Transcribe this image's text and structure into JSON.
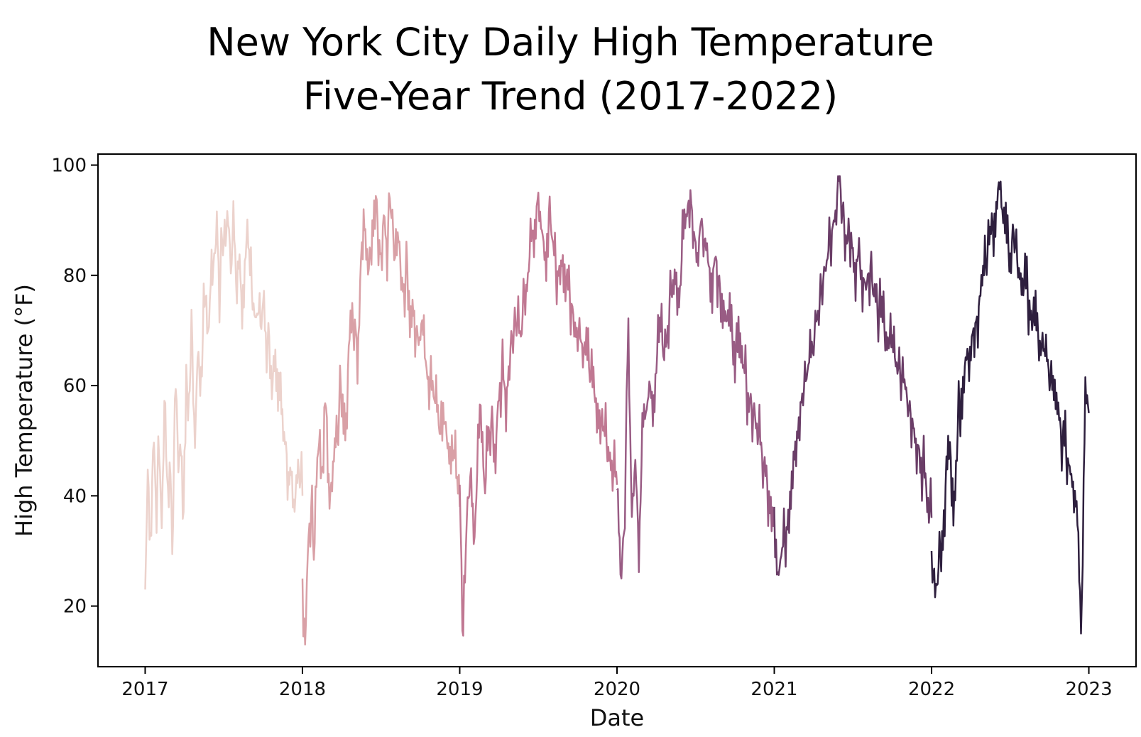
{
  "chart_data": {
    "type": "line",
    "title": "New York City Daily High Temperature",
    "subtitle": "Five-Year Trend (2017-2022)",
    "xlabel": "Date",
    "ylabel": "High Temperature (°F)",
    "xlim": [
      2016.7,
      2023.3
    ],
    "ylim": [
      9,
      102
    ],
    "x_ticks": [
      "2017",
      "2018",
      "2019",
      "2020",
      "2021",
      "2022",
      "2023"
    ],
    "y_ticks": [
      20,
      40,
      60,
      80,
      100
    ],
    "grid": false,
    "legend": "none",
    "series": [
      {
        "year": 2017,
        "color": "#ecd2cc",
        "min": 23,
        "max": 94,
        "values": [
          23,
          45,
          32,
          52,
          38,
          48,
          35,
          58,
          40,
          47,
          30,
          66,
          44,
          52,
          36,
          60,
          58,
          70,
          49,
          65,
          61,
          70,
          78,
          68,
          85,
          80,
          92,
          76,
          88,
          84,
          94,
          80,
          90,
          78,
          86,
          75,
          82,
          88,
          80,
          76,
          72,
          74,
          70,
          78,
          66,
          69,
          60,
          63,
          55,
          58,
          50,
          49,
          44,
          46,
          38,
          42,
          45,
          40
        ]
      },
      {
        "year": 2018,
        "color": "#d9a0a6",
        "min": 13,
        "max": 96,
        "values": [
          25,
          13,
          33,
          38,
          28,
          45,
          52,
          40,
          61,
          44,
          39,
          48,
          50,
          60,
          58,
          55,
          68,
          70,
          72,
          66,
          82,
          92,
          86,
          80,
          90,
          96,
          88,
          84,
          92,
          85,
          94,
          88,
          82,
          86,
          80,
          78,
          82,
          74,
          76,
          70,
          68,
          72,
          65,
          62,
          60,
          58,
          56,
          52,
          50,
          55,
          47,
          44,
          48,
          42,
          38
        ]
      },
      {
        "year": 2019,
        "color": "#c07892",
        "min": 14,
        "max": 95,
        "values": [
          42,
          14,
          36,
          44,
          30,
          46,
          58,
          40,
          50,
          54,
          48,
          60,
          62,
          58,
          66,
          70,
          72,
          68,
          76,
          80,
          86,
          90,
          95,
          88,
          84,
          92,
          86,
          80,
          82,
          84,
          78,
          76,
          72,
          70,
          68,
          66,
          64,
          60,
          58,
          56,
          52,
          50,
          48,
          45,
          42
        ]
      },
      {
        "year": 2020,
        "color": "#995c84",
        "min": 25,
        "max": 96,
        "values": [
          41,
          25,
          34,
          69,
          38,
          46,
          31,
          52,
          55,
          60,
          58,
          66,
          70,
          64,
          72,
          78,
          82,
          76,
          86,
          90,
          96,
          88,
          84,
          90,
          86,
          82,
          80,
          84,
          78,
          76,
          72,
          70,
          68,
          66,
          64,
          62,
          58,
          56,
          54,
          50,
          46,
          42,
          40,
          36
        ]
      },
      {
        "year": 2021,
        "color": "#6a3d67",
        "min": 25,
        "max": 98,
        "values": [
          38,
          25,
          30,
          33,
          40,
          48,
          52,
          58,
          60,
          64,
          66,
          72,
          76,
          80,
          84,
          88,
          92,
          98,
          90,
          86,
          88,
          82,
          84,
          80,
          78,
          82,
          76,
          74,
          72,
          70,
          68,
          66,
          64,
          62,
          60,
          56,
          54,
          50,
          48,
          44,
          40,
          36
        ]
      },
      {
        "year": 2022,
        "color": "#2e1f3e",
        "min": 15,
        "max": 97,
        "values": [
          30,
          21,
          28,
          35,
          44,
          48,
          40,
          52,
          60,
          64,
          66,
          70,
          72,
          76,
          80,
          84,
          88,
          92,
          97,
          90,
          86,
          84,
          88,
          82,
          80,
          78,
          76,
          72,
          70,
          68,
          66,
          64,
          60,
          56,
          54,
          50,
          48,
          45,
          42,
          38,
          15,
          62,
          55
        ]
      }
    ]
  }
}
